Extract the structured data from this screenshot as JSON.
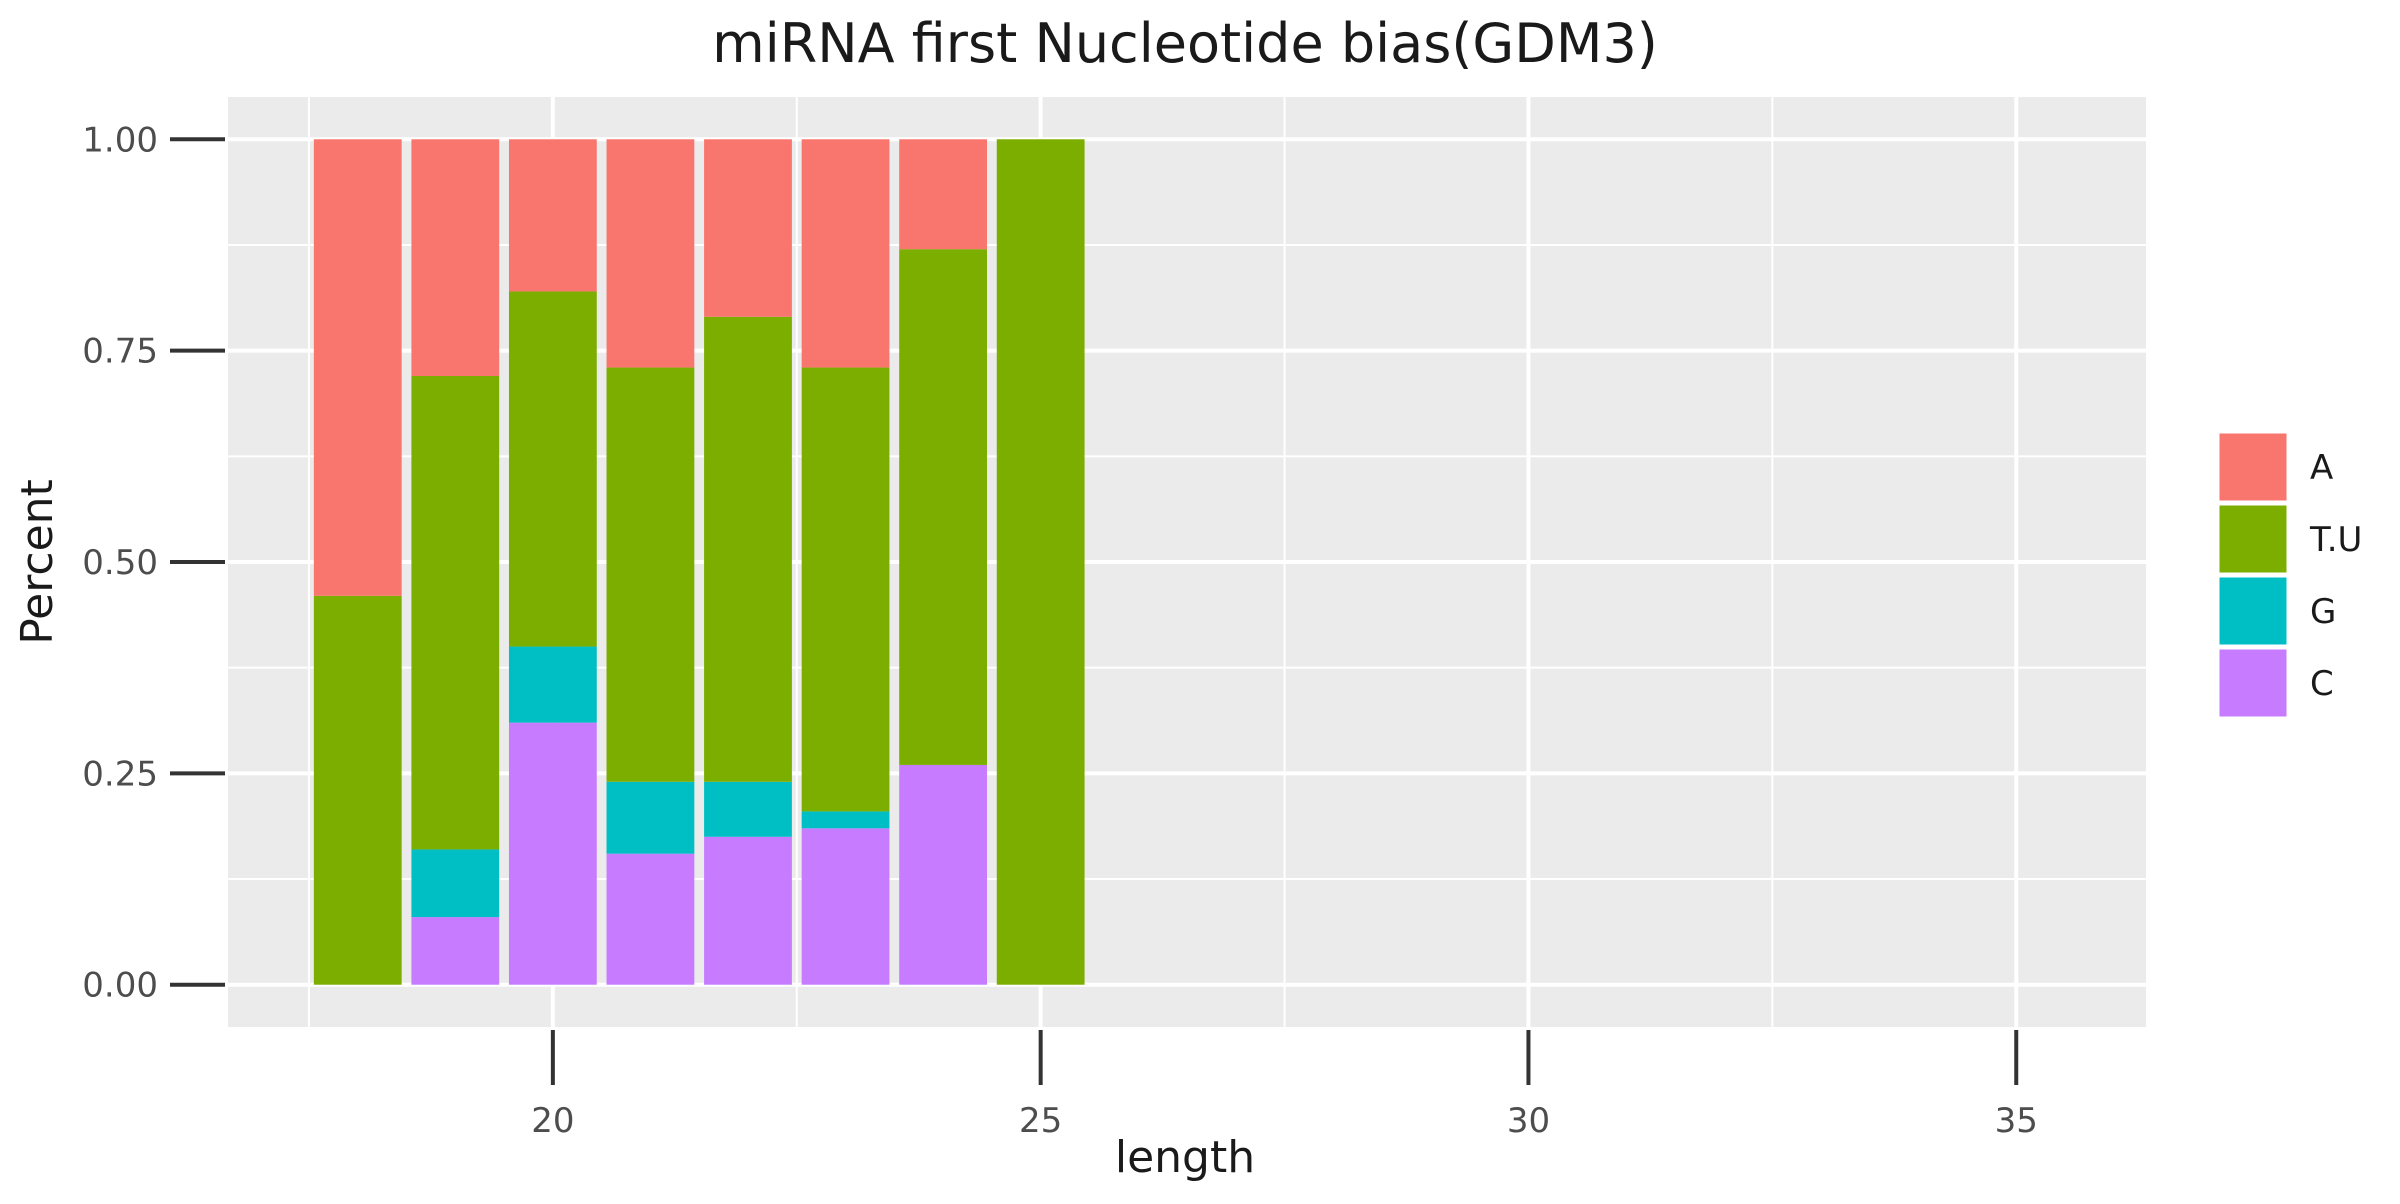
{
  "chart_data": {
    "type": "bar",
    "stacked": true,
    "title": "miRNA first Nucleotide bias(GDM3)",
    "xlabel": "length",
    "ylabel": "Percent",
    "xlim": [
      16.67,
      36.33
    ],
    "ylim": [
      -0.05,
      1.05
    ],
    "xticks": [
      20,
      25,
      30,
      35
    ],
    "yticks": [
      0.0,
      0.25,
      0.5,
      0.75,
      1.0
    ],
    "ytick_labels": [
      "0.00",
      "0.25",
      "0.50",
      "0.75",
      "1.00"
    ],
    "grid": true,
    "legend_position": "right",
    "x": [
      18,
      19,
      20,
      21,
      22,
      23,
      24,
      25
    ],
    "stack_order_bottom_to_top": [
      "C",
      "G",
      "T.U",
      "A"
    ],
    "series": [
      {
        "name": "A",
        "color": "#F8766D",
        "values": [
          0.54,
          0.28,
          0.18,
          0.27,
          0.21,
          0.27,
          0.13,
          0.0
        ]
      },
      {
        "name": "T.U",
        "color": "#7CAE00",
        "values": [
          0.46,
          0.56,
          0.42,
          0.49,
          0.55,
          0.525,
          0.61,
          1.0
        ]
      },
      {
        "name": "G",
        "color": "#00BFC4",
        "values": [
          0.0,
          0.08,
          0.09,
          0.085,
          0.065,
          0.02,
          0.0,
          0.0
        ]
      },
      {
        "name": "C",
        "color": "#C77CFF",
        "values": [
          0.0,
          0.08,
          0.31,
          0.155,
          0.175,
          0.185,
          0.26,
          0.0
        ]
      }
    ]
  }
}
